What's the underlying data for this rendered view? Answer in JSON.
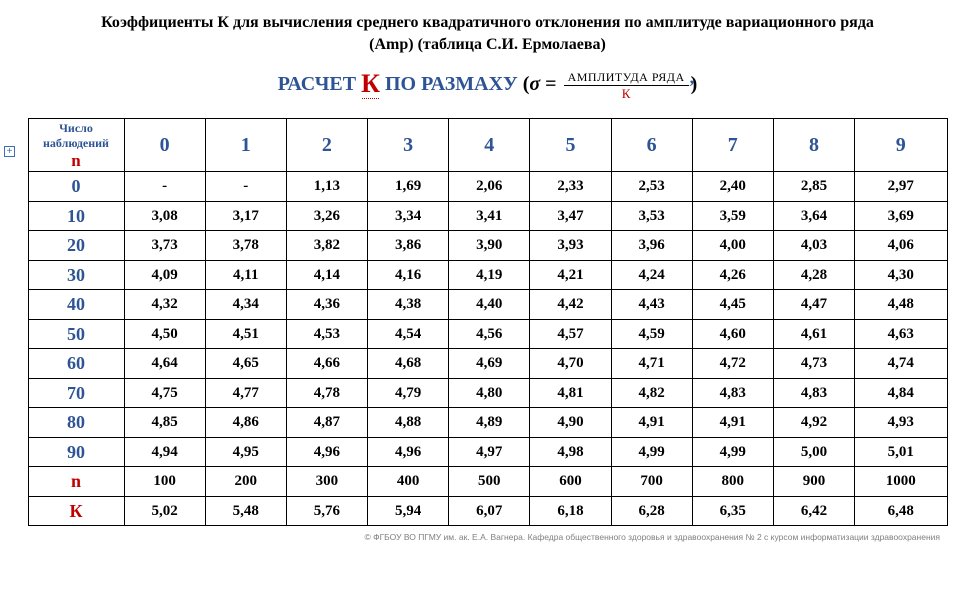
{
  "title_line1": "Коэффициенты К для вычисления среднего квадратичного отклонения по амплитуде вариационного ряда",
  "title_line2": "(Amp) (таблица С.И. Ермолаева)",
  "formula": {
    "prefix": "РАСЧЕТ ",
    "k": "К",
    "mid": " ПО РАЗМАХУ ",
    "sigma": "σ",
    "eq": " = ",
    "num": "АМПЛИТУДА РЯДА",
    "den": "К"
  },
  "header": {
    "obs_label": "Число наблюдений",
    "n": "n",
    "cols": [
      "0",
      "1",
      "2",
      "3",
      "4",
      "5",
      "6",
      "7",
      "8",
      "9"
    ]
  },
  "rows": [
    {
      "head": "0",
      "cells": [
        "-",
        "-",
        "1,13",
        "1,69",
        "2,06",
        "2,33",
        "2,53",
        "2,40",
        "2,85",
        "2,97"
      ]
    },
    {
      "head": "10",
      "cells": [
        "3,08",
        "3,17",
        "3,26",
        "3,34",
        "3,41",
        "3,47",
        "3,53",
        "3,59",
        "3,64",
        "3,69"
      ]
    },
    {
      "head": "20",
      "cells": [
        "3,73",
        "3,78",
        "3,82",
        "3,86",
        "3,90",
        "3,93",
        "3,96",
        "4,00",
        "4,03",
        "4,06"
      ]
    },
    {
      "head": "30",
      "cells": [
        "4,09",
        "4,11",
        "4,14",
        "4,16",
        "4,19",
        "4,21",
        "4,24",
        "4,26",
        "4,28",
        "4,30"
      ]
    },
    {
      "head": "40",
      "cells": [
        "4,32",
        "4,34",
        "4,36",
        "4,38",
        "4,40",
        "4,42",
        "4,43",
        "4,45",
        "4,47",
        "4,48"
      ]
    },
    {
      "head": "50",
      "cells": [
        "4,50",
        "4,51",
        "4,53",
        "4,54",
        "4,56",
        "4,57",
        "4,59",
        "4,60",
        "4,61",
        "4,63"
      ]
    },
    {
      "head": "60",
      "cells": [
        "4,64",
        "4,65",
        "4,66",
        "4,68",
        "4,69",
        "4,70",
        "4,71",
        "4,72",
        "4,73",
        "4,74"
      ]
    },
    {
      "head": "70",
      "cells": [
        "4,75",
        "4,77",
        "4,78",
        "4,79",
        "4,80",
        "4,81",
        "4,82",
        "4,83",
        "4,83",
        "4,84"
      ]
    },
    {
      "head": "80",
      "cells": [
        "4,85",
        "4,86",
        "4,87",
        "4,88",
        "4,89",
        "4,90",
        "4,91",
        "4,91",
        "4,92",
        "4,93"
      ]
    },
    {
      "head": "90",
      "cells": [
        "4,94",
        "4,95",
        "4,96",
        "4,96",
        "4,97",
        "4,98",
        "4,99",
        "4,99",
        "5,00",
        "5,01"
      ]
    },
    {
      "head": "n",
      "red": true,
      "cells": [
        "100",
        "200",
        "300",
        "400",
        "500",
        "600",
        "700",
        "800",
        "900",
        "1000"
      ]
    },
    {
      "head": "К",
      "red": true,
      "cells": [
        "5,02",
        "5,48",
        "5,76",
        "5,94",
        "6,07",
        "6,18",
        "6,28",
        "6,35",
        "6,42",
        "6,48"
      ]
    }
  ],
  "copyright": "© ФГБОУ ВО ПГМУ им. ак. Е.А. Вагнера. Кафедра общественного здоровья и здравоохранения № 2 с курсом информатизации здравоохранения",
  "colors": {
    "blue": "#2e5496",
    "red": "#c00000",
    "text": "#000000",
    "bg": "#ffffff",
    "grey": "#808080"
  }
}
